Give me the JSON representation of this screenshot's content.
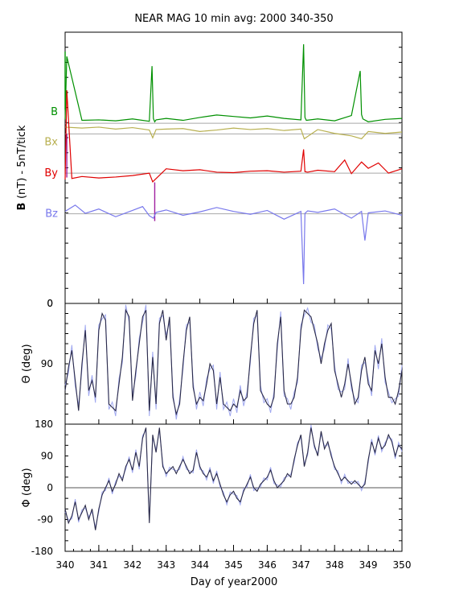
{
  "chart_data": [
    {
      "type": "line",
      "title": "NEAR MAG 10 min avg: 2000 340-350",
      "ylabel_bold": "B",
      "ylabel": "(nT) - 5nT/tick",
      "xlim": [
        340,
        350
      ],
      "ylim_value": 0,
      "baselines": [
        {
          "series": "B",
          "y_value": 17.2
        },
        {
          "series": "Bx",
          "y_value": 15.0
        },
        {
          "series": "By",
          "y_value": 6.9
        },
        {
          "series": "Bz",
          "y_value": -1.5
        }
      ],
      "ytick_count": 18,
      "series": [
        {
          "name": "B",
          "color": "#009000",
          "x": [
            340.0,
            340.05,
            340.5,
            341.0,
            341.5,
            342.0,
            342.5,
            342.58,
            342.62,
            342.66,
            342.7,
            343.0,
            343.5,
            344.0,
            344.5,
            345.0,
            345.5,
            346.0,
            346.5,
            347.0,
            347.08,
            347.12,
            347.16,
            347.5,
            348.0,
            348.5,
            348.76,
            348.8,
            348.84,
            349.0,
            349.5,
            350.0
          ],
          "values": [
            18.0,
            31.0,
            17.8,
            17.9,
            17.7,
            18.1,
            17.6,
            29.0,
            18.2,
            17.5,
            17.9,
            18.2,
            17.8,
            18.4,
            18.9,
            18.6,
            18.3,
            18.7,
            18.2,
            17.9,
            33.5,
            18.4,
            17.8,
            18.1,
            17.7,
            18.8,
            28.0,
            19.0,
            18.1,
            17.5,
            18.0,
            18.2
          ]
        },
        {
          "name": "Bx",
          "color": "#b8b050",
          "x": [
            340.0,
            340.5,
            341.0,
            341.5,
            342.0,
            342.5,
            342.6,
            342.7,
            343.0,
            343.5,
            344.0,
            344.5,
            345.0,
            345.5,
            346.0,
            346.5,
            347.0,
            347.1,
            347.5,
            348.0,
            348.5,
            348.8,
            349.0,
            349.5,
            350.0
          ],
          "values": [
            16.4,
            16.2,
            16.4,
            16.0,
            16.3,
            15.8,
            14.2,
            15.9,
            16.0,
            16.1,
            15.5,
            15.8,
            16.2,
            15.9,
            16.1,
            15.7,
            16.0,
            14.0,
            15.9,
            15.1,
            14.6,
            14.0,
            15.5,
            15.1,
            15.4
          ]
        },
        {
          "name": "By",
          "color": "#e00000",
          "x": [
            340.0,
            340.05,
            340.2,
            340.5,
            341.0,
            341.5,
            342.0,
            342.5,
            342.6,
            343.0,
            343.5,
            344.0,
            344.5,
            345.0,
            345.5,
            346.0,
            346.5,
            347.0,
            347.08,
            347.12,
            347.2,
            347.5,
            348.0,
            348.3,
            348.5,
            348.8,
            349.0,
            349.3,
            349.6,
            350.0
          ],
          "values": [
            5.6,
            24.0,
            5.8,
            6.2,
            5.9,
            6.1,
            6.4,
            6.9,
            5.1,
            7.8,
            7.4,
            7.6,
            7.1,
            7.0,
            7.3,
            7.4,
            7.1,
            7.3,
            11.8,
            7.2,
            7.1,
            7.5,
            7.2,
            9.6,
            6.8,
            9.2,
            7.9,
            9.0,
            6.9,
            7.8
          ]
        },
        {
          "name": "Bz",
          "color": "#7878ec",
          "x": [
            340.0,
            340.3,
            340.6,
            341.0,
            341.5,
            342.0,
            342.3,
            342.5,
            342.62,
            342.7,
            343.0,
            343.5,
            344.0,
            344.5,
            345.0,
            345.5,
            346.0,
            346.5,
            347.0,
            347.08,
            347.12,
            347.2,
            347.5,
            348.0,
            348.5,
            348.8,
            348.9,
            349.0,
            349.5,
            350.0
          ],
          "values": [
            -1.0,
            0.3,
            -1.4,
            -0.5,
            -2.1,
            -0.8,
            0.0,
            -1.9,
            -2.4,
            -1.2,
            -0.7,
            -1.8,
            -1.1,
            -0.2,
            -1.0,
            -1.6,
            -0.8,
            -2.6,
            -1.0,
            -16.0,
            -1.4,
            -0.9,
            -1.2,
            -0.5,
            -2.4,
            -1.0,
            -7.0,
            -1.3,
            -0.9,
            -1.8
          ]
        }
      ],
      "spikes": [
        {
          "x": 340.0,
          "from": 20.0,
          "to": 32.0,
          "color": "#009000"
        },
        {
          "x": 340.05,
          "from": 6.0,
          "to": 15.0,
          "color": "#a020a0"
        },
        {
          "x": 342.66,
          "from": -3.0,
          "to": 5.0,
          "color": "#a020a0"
        }
      ]
    },
    {
      "type": "line",
      "ylabel": "Θ (deg)",
      "xlim": [
        340,
        350
      ],
      "ylim": [
        180,
        0
      ],
      "yticks": [
        0,
        90
      ],
      "series": [
        {
          "name": "",
          "color": "#2a2a48",
          "x": [
            340.0,
            340.1,
            340.2,
            340.3,
            340.4,
            340.5,
            340.6,
            340.7,
            340.8,
            340.9,
            341.0,
            341.1,
            341.2,
            341.3,
            341.4,
            341.5,
            341.6,
            341.7,
            341.8,
            341.9,
            342.0,
            342.1,
            342.2,
            342.3,
            342.4,
            342.5,
            342.6,
            342.7,
            342.8,
            342.9,
            343.0,
            343.1,
            343.2,
            343.3,
            343.4,
            343.5,
            343.6,
            343.7,
            343.8,
            343.9,
            344.0,
            344.1,
            344.2,
            344.3,
            344.4,
            344.5,
            344.6,
            344.7,
            344.8,
            344.9,
            345.0,
            345.1,
            345.2,
            345.3,
            345.4,
            345.5,
            345.6,
            345.7,
            345.8,
            345.9,
            346.0,
            346.1,
            346.2,
            346.3,
            346.4,
            346.5,
            346.6,
            346.7,
            346.8,
            346.9,
            347.0,
            347.1,
            347.2,
            347.3,
            347.4,
            347.5,
            347.6,
            347.7,
            347.8,
            347.9,
            348.0,
            348.1,
            348.2,
            348.3,
            348.4,
            348.5,
            348.6,
            348.7,
            348.8,
            348.9,
            349.0,
            349.1,
            349.2,
            349.3,
            349.4,
            349.5,
            349.6,
            349.7,
            349.8,
            349.9,
            350.0
          ],
          "values": [
            130,
            95,
            70,
            115,
            160,
            90,
            40,
            130,
            115,
            140,
            40,
            15,
            25,
            150,
            155,
            160,
            120,
            80,
            10,
            20,
            145,
            100,
            60,
            20,
            10,
            160,
            80,
            150,
            30,
            10,
            55,
            20,
            140,
            165,
            150,
            90,
            40,
            20,
            125,
            150,
            140,
            145,
            120,
            90,
            100,
            150,
            110,
            150,
            155,
            160,
            150,
            155,
            130,
            145,
            140,
            80,
            30,
            10,
            130,
            140,
            150,
            155,
            140,
            60,
            20,
            130,
            150,
            150,
            140,
            110,
            40,
            10,
            15,
            20,
            40,
            60,
            90,
            60,
            40,
            30,
            100,
            120,
            140,
            120,
            90,
            120,
            150,
            140,
            100,
            80,
            120,
            130,
            70,
            90,
            60,
            110,
            140,
            140,
            150,
            130,
            100
          ]
        }
      ]
    },
    {
      "type": "line",
      "ylabel": "Φ (deg)",
      "xlim": [
        340,
        350
      ],
      "ylim": [
        -180,
        180
      ],
      "yticks": [
        -180,
        -90,
        0,
        90,
        180
      ],
      "xticks": [
        340,
        341,
        342,
        343,
        344,
        345,
        346,
        347,
        348,
        349,
        350
      ],
      "xlabel": "Day of year2000",
      "series": [
        {
          "name": "",
          "color": "#2a2a48",
          "x": [
            340.0,
            340.1,
            340.2,
            340.3,
            340.4,
            340.5,
            340.6,
            340.7,
            340.8,
            340.9,
            341.0,
            341.1,
            341.2,
            341.3,
            341.4,
            341.5,
            341.6,
            341.7,
            341.8,
            341.9,
            342.0,
            342.1,
            342.2,
            342.3,
            342.4,
            342.5,
            342.6,
            342.7,
            342.8,
            342.9,
            343.0,
            343.1,
            343.2,
            343.3,
            343.4,
            343.5,
            343.6,
            343.7,
            343.8,
            343.9,
            344.0,
            344.1,
            344.2,
            344.3,
            344.4,
            344.5,
            344.6,
            344.7,
            344.8,
            344.9,
            345.0,
            345.1,
            345.2,
            345.3,
            345.4,
            345.5,
            345.6,
            345.7,
            345.8,
            345.9,
            346.0,
            346.1,
            346.2,
            346.3,
            346.4,
            346.5,
            346.6,
            346.7,
            346.8,
            346.9,
            347.0,
            347.1,
            347.2,
            347.3,
            347.4,
            347.5,
            347.6,
            347.7,
            347.8,
            347.9,
            348.0,
            348.1,
            348.2,
            348.3,
            348.4,
            348.5,
            348.6,
            348.7,
            348.8,
            348.9,
            349.0,
            349.1,
            349.2,
            349.3,
            349.4,
            349.5,
            349.6,
            349.7,
            349.8,
            349.9,
            350.0
          ],
          "values": [
            -60,
            -100,
            -80,
            -40,
            -90,
            -70,
            -50,
            -90,
            -60,
            -120,
            -60,
            -20,
            0,
            20,
            -10,
            10,
            40,
            20,
            60,
            80,
            50,
            100,
            60,
            140,
            170,
            -100,
            150,
            100,
            170,
            60,
            40,
            50,
            60,
            40,
            60,
            80,
            60,
            40,
            50,
            100,
            60,
            40,
            30,
            50,
            20,
            40,
            10,
            -20,
            -40,
            -20,
            -10,
            -30,
            -40,
            -10,
            10,
            30,
            0,
            -10,
            10,
            20,
            30,
            50,
            20,
            0,
            10,
            20,
            40,
            30,
            80,
            120,
            150,
            60,
            100,
            170,
            120,
            90,
            160,
            110,
            130,
            90,
            60,
            40,
            20,
            30,
            20,
            10,
            20,
            10,
            0,
            10,
            80,
            130,
            100,
            140,
            110,
            120,
            150,
            130,
            90,
            120,
            110
          ]
        }
      ],
      "reference_line": 0
    }
  ]
}
